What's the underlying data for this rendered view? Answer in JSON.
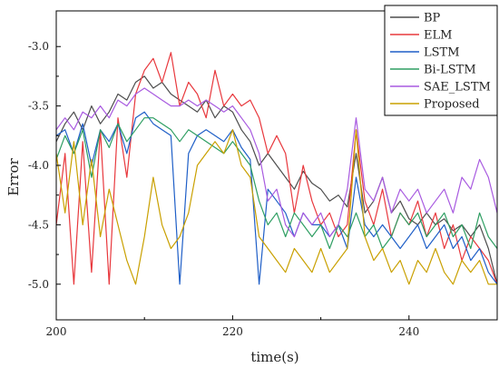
{
  "chart_data": {
    "type": "line",
    "xlabel": "time(s)",
    "ylabel": "Error",
    "xlim": [
      200,
      250
    ],
    "ylim": [
      -5.3,
      -2.7
    ],
    "xticks": [
      200,
      220,
      240
    ],
    "yticks": [
      -3.0,
      -3.5,
      -4.0,
      -4.5,
      -5.0
    ],
    "ytick_labels": [
      "-3.0",
      "-3.5",
      "-4.0",
      "-4.5",
      "-5.0"
    ],
    "grid": false,
    "legend_position": "top-right",
    "series": [
      {
        "name": "BP",
        "color": "#4d4d4d",
        "x": [
          200,
          201,
          202,
          203,
          204,
          205,
          206,
          207,
          208,
          209,
          210,
          211,
          212,
          213,
          214,
          215,
          216,
          217,
          218,
          219,
          220,
          221,
          222,
          223,
          224,
          225,
          226,
          227,
          228,
          229,
          230,
          231,
          232,
          233,
          234,
          235,
          236,
          237,
          238,
          239,
          240,
          241,
          242,
          243,
          244,
          245,
          246,
          247,
          248,
          249,
          250
        ],
        "values": [
          -3.8,
          -3.65,
          -3.55,
          -3.7,
          -3.5,
          -3.65,
          -3.55,
          -3.4,
          -3.45,
          -3.3,
          -3.25,
          -3.35,
          -3.3,
          -3.4,
          -3.45,
          -3.5,
          -3.55,
          -3.45,
          -3.6,
          -3.5,
          -3.55,
          -3.7,
          -3.8,
          -4.0,
          -3.9,
          -4.0,
          -4.1,
          -4.2,
          -4.05,
          -4.15,
          -4.2,
          -4.3,
          -4.25,
          -4.35,
          -3.9,
          -4.4,
          -4.3,
          -4.1,
          -4.4,
          -4.3,
          -4.45,
          -4.5,
          -4.4,
          -4.5,
          -4.45,
          -4.55,
          -4.5,
          -4.6,
          -4.5,
          -4.7,
          -5.0
        ]
      },
      {
        "name": "ELM",
        "color": "#e8383d",
        "x": [
          200,
          201,
          202,
          203,
          204,
          205,
          206,
          207,
          208,
          209,
          210,
          211,
          212,
          213,
          214,
          215,
          216,
          217,
          218,
          219,
          220,
          221,
          222,
          223,
          224,
          225,
          226,
          227,
          228,
          229,
          230,
          231,
          232,
          233,
          234,
          235,
          236,
          237,
          238,
          239,
          240,
          241,
          242,
          243,
          244,
          245,
          246,
          247,
          248,
          249,
          250
        ],
        "values": [
          -4.5,
          -3.9,
          -5.0,
          -3.8,
          -4.9,
          -3.7,
          -5.0,
          -3.6,
          -4.1,
          -3.4,
          -3.2,
          -3.1,
          -3.3,
          -3.05,
          -3.5,
          -3.3,
          -3.4,
          -3.6,
          -3.2,
          -3.5,
          -3.4,
          -3.5,
          -3.45,
          -3.6,
          -3.9,
          -3.75,
          -3.9,
          -4.4,
          -4.0,
          -4.3,
          -4.5,
          -4.4,
          -4.6,
          -4.5,
          -3.7,
          -4.3,
          -4.5,
          -4.2,
          -4.6,
          -4.4,
          -4.5,
          -4.3,
          -4.6,
          -4.4,
          -4.7,
          -4.5,
          -4.8,
          -4.6,
          -4.7,
          -4.8,
          -5.0
        ]
      },
      {
        "name": "LSTM",
        "color": "#1f5fc7",
        "x": [
          200,
          201,
          202,
          203,
          204,
          205,
          206,
          207,
          208,
          209,
          210,
          211,
          212,
          213,
          214,
          215,
          216,
          217,
          218,
          219,
          220,
          221,
          222,
          223,
          224,
          225,
          226,
          227,
          228,
          229,
          230,
          231,
          232,
          233,
          234,
          235,
          236,
          237,
          238,
          239,
          240,
          241,
          242,
          243,
          244,
          245,
          246,
          247,
          248,
          249,
          250
        ],
        "values": [
          -3.75,
          -3.7,
          -3.9,
          -3.65,
          -4.0,
          -3.7,
          -3.8,
          -3.65,
          -3.9,
          -3.6,
          -3.55,
          -3.65,
          -3.7,
          -3.75,
          -5.0,
          -3.9,
          -3.75,
          -3.7,
          -3.75,
          -3.8,
          -3.7,
          -3.85,
          -3.95,
          -5.0,
          -4.2,
          -4.3,
          -4.4,
          -4.6,
          -4.4,
          -4.5,
          -4.5,
          -4.6,
          -4.5,
          -4.7,
          -4.1,
          -4.5,
          -4.6,
          -4.5,
          -4.6,
          -4.7,
          -4.6,
          -4.5,
          -4.7,
          -4.6,
          -4.5,
          -4.7,
          -4.6,
          -4.8,
          -4.7,
          -4.9,
          -5.0
        ]
      },
      {
        "name": "Bi-LSTM",
        "color": "#2e9e62",
        "x": [
          200,
          201,
          202,
          203,
          204,
          205,
          206,
          207,
          208,
          209,
          210,
          211,
          212,
          213,
          214,
          215,
          216,
          217,
          218,
          219,
          220,
          221,
          222,
          223,
          224,
          225,
          226,
          227,
          228,
          229,
          230,
          231,
          232,
          233,
          234,
          235,
          236,
          237,
          238,
          239,
          240,
          241,
          242,
          243,
          244,
          245,
          246,
          247,
          248,
          249,
          250
        ],
        "values": [
          -3.95,
          -3.75,
          -3.9,
          -3.7,
          -4.1,
          -3.7,
          -3.85,
          -3.65,
          -3.8,
          -3.7,
          -3.6,
          -3.6,
          -3.65,
          -3.7,
          -3.8,
          -3.7,
          -3.75,
          -3.8,
          -3.85,
          -3.9,
          -3.8,
          -3.9,
          -4.0,
          -4.3,
          -4.5,
          -4.4,
          -4.6,
          -4.4,
          -4.5,
          -4.6,
          -4.5,
          -4.7,
          -4.5,
          -4.6,
          -4.4,
          -4.6,
          -4.5,
          -4.7,
          -4.6,
          -4.4,
          -4.5,
          -4.4,
          -4.6,
          -4.5,
          -4.4,
          -4.6,
          -4.5,
          -4.7,
          -4.4,
          -4.6,
          -4.7
        ]
      },
      {
        "name": "SAE_LSTM",
        "color": "#a85ae0",
        "x": [
          200,
          201,
          202,
          203,
          204,
          205,
          206,
          207,
          208,
          209,
          210,
          211,
          212,
          213,
          214,
          215,
          216,
          217,
          218,
          219,
          220,
          221,
          222,
          223,
          224,
          225,
          226,
          227,
          228,
          229,
          230,
          231,
          232,
          233,
          234,
          235,
          236,
          237,
          238,
          239,
          240,
          241,
          242,
          243,
          244,
          245,
          246,
          247,
          248,
          249,
          250
        ],
        "values": [
          -3.7,
          -3.6,
          -3.7,
          -3.55,
          -3.6,
          -3.5,
          -3.6,
          -3.45,
          -3.5,
          -3.4,
          -3.35,
          -3.4,
          -3.45,
          -3.5,
          -3.5,
          -3.45,
          -3.5,
          -3.45,
          -3.5,
          -3.55,
          -3.5,
          -3.6,
          -3.7,
          -3.9,
          -4.3,
          -4.2,
          -4.5,
          -4.6,
          -4.4,
          -4.5,
          -4.4,
          -4.6,
          -4.5,
          -4.2,
          -3.6,
          -4.2,
          -4.3,
          -4.1,
          -4.4,
          -4.2,
          -4.3,
          -4.2,
          -4.4,
          -4.3,
          -4.2,
          -4.4,
          -4.1,
          -4.2,
          -3.95,
          -4.1,
          -4.4
        ]
      },
      {
        "name": "Proposed",
        "color": "#c9a000",
        "x": [
          200,
          201,
          202,
          203,
          204,
          205,
          206,
          207,
          208,
          209,
          210,
          211,
          212,
          213,
          214,
          215,
          216,
          217,
          218,
          219,
          220,
          221,
          222,
          223,
          224,
          225,
          226,
          227,
          228,
          229,
          230,
          231,
          232,
          233,
          234,
          235,
          236,
          237,
          238,
          239,
          240,
          241,
          242,
          243,
          244,
          245,
          246,
          247,
          248,
          249,
          250
        ],
        "values": [
          -3.9,
          -4.4,
          -3.8,
          -4.5,
          -3.95,
          -4.6,
          -4.2,
          -4.5,
          -4.8,
          -5.0,
          -4.6,
          -4.1,
          -4.5,
          -4.7,
          -4.6,
          -4.4,
          -4.0,
          -3.9,
          -3.8,
          -3.9,
          -3.7,
          -4.0,
          -4.1,
          -4.6,
          -4.7,
          -4.8,
          -4.9,
          -4.7,
          -4.8,
          -4.9,
          -4.7,
          -4.9,
          -4.8,
          -4.7,
          -3.7,
          -4.6,
          -4.8,
          -4.7,
          -4.9,
          -4.8,
          -5.0,
          -4.8,
          -4.9,
          -4.7,
          -4.9,
          -5.0,
          -4.8,
          -4.9,
          -4.8,
          -5.0,
          -5.0
        ]
      }
    ]
  }
}
